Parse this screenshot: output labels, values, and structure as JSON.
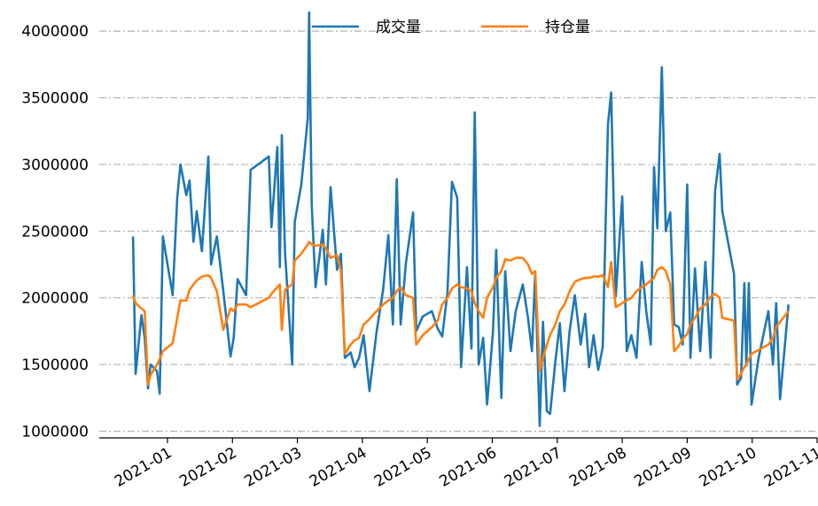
{
  "chart_data": {
    "type": "line",
    "x": [
      0.47,
      0.51,
      0.6,
      0.65,
      0.7,
      0.74,
      0.84,
      0.88,
      0.93,
      1.08,
      1.15,
      1.2,
      1.29,
      1.34,
      1.4,
      1.45,
      1.53,
      1.63,
      1.67,
      1.76,
      1.86,
      1.97,
      2.02,
      2.08,
      2.21,
      2.28,
      2.56,
      2.6,
      2.69,
      2.73,
      2.76,
      2.81,
      2.86,
      2.92,
      2.96,
      3.06,
      3.16,
      3.18,
      3.22,
      3.28,
      3.39,
      3.44,
      3.51,
      3.61,
      3.67,
      3.73,
      3.82,
      3.88,
      3.95,
      4.02,
      4.11,
      4.22,
      4.32,
      4.4,
      4.47,
      4.53,
      4.59,
      4.67,
      4.78,
      4.83,
      4.93,
      5.07,
      5.16,
      5.23,
      5.31,
      5.38,
      5.46,
      5.52,
      5.61,
      5.68,
      5.73,
      5.79,
      5.86,
      5.92,
      6.01,
      6.06,
      6.14,
      6.2,
      6.28,
      6.36,
      6.47,
      6.55,
      6.61,
      6.66,
      6.73,
      6.78,
      6.84,
      6.89,
      6.97,
      7.04,
      7.11,
      7.19,
      7.27,
      7.36,
      7.43,
      7.49,
      7.56,
      7.63,
      7.7,
      7.78,
      7.83,
      7.9,
      8.0,
      8.07,
      8.14,
      8.22,
      8.3,
      8.37,
      8.44,
      8.49,
      8.54,
      8.61,
      8.67,
      8.74,
      8.8,
      8.87,
      8.93,
      9.0,
      9.05,
      9.12,
      9.2,
      9.28,
      9.36,
      9.43,
      9.5,
      9.54,
      9.72,
      9.77,
      9.83,
      9.88,
      9.91,
      9.95,
      9.99,
      10.1,
      10.25,
      10.32,
      10.37,
      10.43,
      10.56
    ],
    "series": [
      {
        "name": "成交量",
        "color": "#1f77b4",
        "values": [
          2460000,
          1430000,
          1870000,
          1700000,
          1320000,
          1500000,
          1450000,
          1280000,
          2460000,
          2020000,
          2750000,
          3000000,
          2770000,
          2880000,
          2420000,
          2650000,
          2350000,
          3060000,
          2250000,
          2460000,
          2050000,
          1560000,
          1700000,
          2140000,
          2020000,
          2960000,
          3060000,
          2530000,
          3130000,
          2230000,
          3220000,
          2340000,
          1960000,
          1500000,
          2570000,
          2850000,
          3350000,
          4140000,
          2700000,
          2080000,
          2510000,
          2100000,
          2830000,
          2210000,
          2330000,
          1550000,
          1590000,
          1480000,
          1550000,
          1720000,
          1300000,
          1750000,
          2060000,
          2470000,
          1800000,
          2890000,
          1800000,
          2260000,
          2640000,
          1750000,
          1860000,
          1900000,
          1770000,
          1710000,
          2040000,
          2870000,
          2750000,
          1480000,
          2230000,
          1620000,
          3390000,
          1500000,
          1700000,
          1200000,
          1740000,
          2360000,
          1250000,
          2200000,
          1600000,
          1900000,
          2100000,
          1850000,
          1600000,
          2180000,
          1040000,
          1820000,
          1150000,
          1130000,
          1520000,
          1810000,
          1300000,
          1750000,
          2020000,
          1650000,
          1880000,
          1480000,
          1720000,
          1460000,
          1630000,
          3300000,
          3540000,
          2010000,
          2760000,
          1600000,
          1720000,
          1550000,
          2270000,
          1900000,
          1650000,
          2980000,
          2520000,
          3730000,
          2500000,
          2640000,
          1800000,
          1780000,
          1650000,
          2850000,
          1550000,
          2220000,
          1600000,
          2270000,
          1550000,
          2800000,
          3080000,
          2650000,
          2180000,
          1350000,
          1400000,
          2110000,
          1490000,
          2110000,
          1200000,
          1550000,
          1900000,
          1500000,
          1960000,
          1240000,
          1950000
        ]
      },
      {
        "name": "持仓量",
        "color": "#ff7f0e",
        "values": [
          2020000,
          1960000,
          1920000,
          1900000,
          1350000,
          1420000,
          1500000,
          1540000,
          1600000,
          1660000,
          1850000,
          1980000,
          1980000,
          2060000,
          2100000,
          2130000,
          2160000,
          2170000,
          2150000,
          2050000,
          1760000,
          1920000,
          1900000,
          1950000,
          1950000,
          1930000,
          2000000,
          2030000,
          2080000,
          2100000,
          1760000,
          2060000,
          2080000,
          2100000,
          2280000,
          2330000,
          2400000,
          2420000,
          2400000,
          2390000,
          2400000,
          2370000,
          2300000,
          2320000,
          2200000,
          1580000,
          1650000,
          1680000,
          1700000,
          1800000,
          1840000,
          1900000,
          1950000,
          1980000,
          2000000,
          2050000,
          2080000,
          2020000,
          2000000,
          1650000,
          1720000,
          1780000,
          1830000,
          1950000,
          2000000,
          2070000,
          2100000,
          2080000,
          2070000,
          2050000,
          1960000,
          1900000,
          1850000,
          2000000,
          2080000,
          2150000,
          2200000,
          2290000,
          2280000,
          2300000,
          2300000,
          2250000,
          2180000,
          2200000,
          1450000,
          1550000,
          1650000,
          1720000,
          1800000,
          1900000,
          1950000,
          2050000,
          2120000,
          2140000,
          2150000,
          2150000,
          2160000,
          2160000,
          2170000,
          2080000,
          2270000,
          1930000,
          1960000,
          1980000,
          2000000,
          2050000,
          2080000,
          2100000,
          2130000,
          2150000,
          2210000,
          2230000,
          2200000,
          2100000,
          1600000,
          1640000,
          1690000,
          1730000,
          1800000,
          1850000,
          1920000,
          1950000,
          2010000,
          2030000,
          2000000,
          1850000,
          1830000,
          1390000,
          1430000,
          1480000,
          1500000,
          1540000,
          1580000,
          1610000,
          1650000,
          1700000,
          1780000,
          1820000,
          1900000
        ]
      }
    ],
    "xlim": [
      -0.05,
      11
    ],
    "xticks": [
      {
        "value": 1,
        "label": "2021-01"
      },
      {
        "value": 2,
        "label": "2021-02"
      },
      {
        "value": 3,
        "label": "2021-03"
      },
      {
        "value": 4,
        "label": "2021-04"
      },
      {
        "value": 5,
        "label": "2021-05"
      },
      {
        "value": 6,
        "label": "2021-06"
      },
      {
        "value": 7,
        "label": "2021-07"
      },
      {
        "value": 8,
        "label": "2021-08"
      },
      {
        "value": 9,
        "label": "2021-09"
      },
      {
        "value": 10,
        "label": "2021-10"
      },
      {
        "value": 11,
        "label": "2021-11"
      }
    ],
    "ylim": [
      950000,
      4200000
    ],
    "yticks": [
      1000000,
      1500000,
      2000000,
      2500000,
      3000000,
      3500000,
      4000000
    ],
    "grid": true
  }
}
